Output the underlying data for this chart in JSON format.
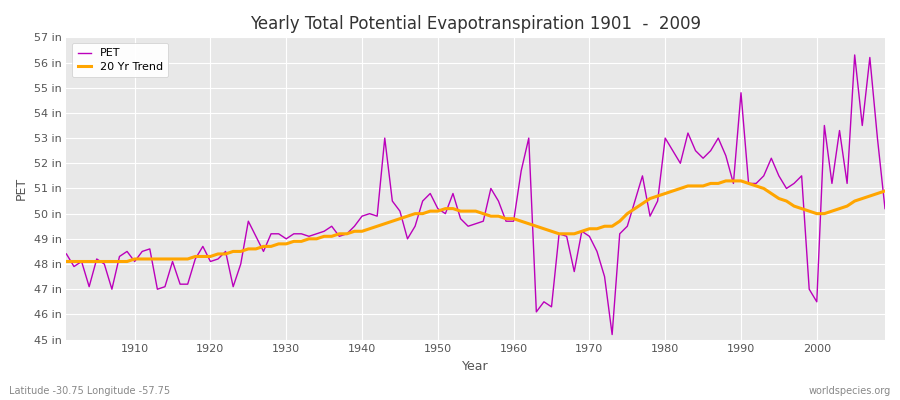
{
  "title": "Yearly Total Potential Evapotranspiration 1901  -  2009",
  "xlabel": "Year",
  "ylabel": "PET",
  "lat_lon_label": "Latitude -30.75 Longitude -57.75",
  "watermark": "worldspecies.org",
  "pet_color": "#bb00bb",
  "trend_color": "#ffa500",
  "bg_color": "#ffffff",
  "plot_bg_color": "#e8e8e8",
  "years": [
    1901,
    1902,
    1903,
    1904,
    1905,
    1906,
    1907,
    1908,
    1909,
    1910,
    1911,
    1912,
    1913,
    1914,
    1915,
    1916,
    1917,
    1918,
    1919,
    1920,
    1921,
    1922,
    1923,
    1924,
    1925,
    1926,
    1927,
    1928,
    1929,
    1930,
    1931,
    1932,
    1933,
    1934,
    1935,
    1936,
    1937,
    1938,
    1939,
    1940,
    1941,
    1942,
    1943,
    1944,
    1945,
    1946,
    1947,
    1948,
    1949,
    1950,
    1951,
    1952,
    1953,
    1954,
    1955,
    1956,
    1957,
    1958,
    1959,
    1960,
    1961,
    1962,
    1963,
    1964,
    1965,
    1966,
    1967,
    1968,
    1969,
    1970,
    1971,
    1972,
    1973,
    1974,
    1975,
    1976,
    1977,
    1978,
    1979,
    1980,
    1981,
    1982,
    1983,
    1984,
    1985,
    1986,
    1987,
    1988,
    1989,
    1990,
    1991,
    1992,
    1993,
    1994,
    1995,
    1996,
    1997,
    1998,
    1999,
    2000,
    2001,
    2002,
    2003,
    2004,
    2005,
    2006,
    2007,
    2008,
    2009
  ],
  "pet": [
    48.4,
    47.9,
    48.1,
    47.1,
    48.2,
    48.0,
    47.0,
    48.3,
    48.5,
    48.1,
    48.5,
    48.6,
    47.0,
    47.1,
    48.1,
    47.2,
    47.2,
    48.2,
    48.7,
    48.1,
    48.2,
    48.5,
    47.1,
    48.0,
    49.7,
    49.1,
    48.5,
    49.2,
    49.2,
    49.0,
    49.2,
    49.2,
    49.1,
    49.2,
    49.3,
    49.5,
    49.1,
    49.2,
    49.5,
    49.9,
    50.0,
    49.9,
    53.0,
    50.5,
    50.1,
    49.0,
    49.5,
    50.5,
    50.8,
    50.2,
    50.0,
    50.8,
    49.8,
    49.5,
    49.6,
    49.7,
    51.0,
    50.5,
    49.7,
    49.7,
    51.7,
    53.0,
    46.1,
    46.5,
    46.3,
    49.2,
    49.1,
    47.7,
    49.3,
    49.1,
    48.5,
    47.5,
    45.2,
    49.2,
    49.5,
    50.5,
    51.5,
    49.9,
    50.5,
    53.0,
    52.5,
    52.0,
    53.2,
    52.5,
    52.2,
    52.5,
    53.0,
    52.3,
    51.2,
    54.8,
    51.2,
    51.2,
    51.5,
    52.2,
    51.5,
    51.0,
    51.2,
    51.5,
    47.0,
    46.5,
    53.5,
    51.2,
    53.3,
    51.2,
    56.3,
    53.5,
    56.2,
    53.0,
    50.2
  ],
  "trend": [
    48.1,
    48.1,
    48.1,
    48.1,
    48.1,
    48.1,
    48.1,
    48.1,
    48.1,
    48.2,
    48.2,
    48.2,
    48.2,
    48.2,
    48.2,
    48.2,
    48.2,
    48.3,
    48.3,
    48.3,
    48.4,
    48.4,
    48.5,
    48.5,
    48.6,
    48.6,
    48.7,
    48.7,
    48.8,
    48.8,
    48.9,
    48.9,
    49.0,
    49.0,
    49.1,
    49.1,
    49.2,
    49.2,
    49.3,
    49.3,
    49.4,
    49.5,
    49.6,
    49.7,
    49.8,
    49.9,
    50.0,
    50.0,
    50.1,
    50.1,
    50.2,
    50.2,
    50.1,
    50.1,
    50.1,
    50.0,
    49.9,
    49.9,
    49.8,
    49.8,
    49.7,
    49.6,
    49.5,
    49.4,
    49.3,
    49.2,
    49.2,
    49.2,
    49.3,
    49.4,
    49.4,
    49.5,
    49.5,
    49.7,
    50.0,
    50.2,
    50.4,
    50.6,
    50.7,
    50.8,
    50.9,
    51.0,
    51.1,
    51.1,
    51.1,
    51.2,
    51.2,
    51.3,
    51.3,
    51.3,
    51.2,
    51.1,
    51.0,
    50.8,
    50.6,
    50.5,
    50.3,
    50.2,
    50.1,
    50.0,
    50.0,
    50.1,
    50.2,
    50.3,
    50.5,
    50.6,
    50.7,
    50.8,
    50.9
  ],
  "ylim": [
    45,
    57
  ],
  "yticks": [
    45,
    46,
    47,
    48,
    49,
    50,
    51,
    52,
    53,
    54,
    55,
    56,
    57
  ],
  "xticks": [
    1910,
    1920,
    1930,
    1940,
    1950,
    1960,
    1970,
    1980,
    1990,
    2000
  ],
  "figsize": [
    9.0,
    4.0
  ],
  "dpi": 100
}
